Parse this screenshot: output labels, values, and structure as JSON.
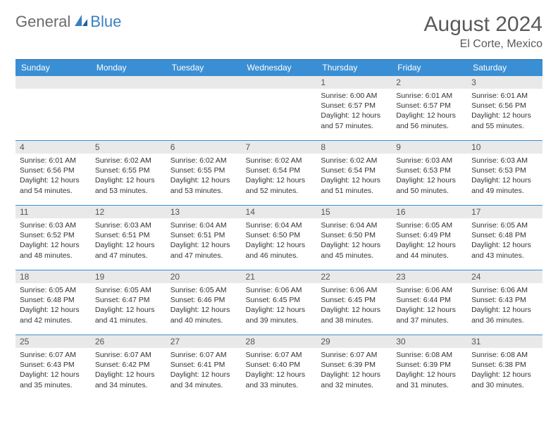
{
  "logo": {
    "text1": "General",
    "text2": "Blue"
  },
  "title": "August 2024",
  "location": "El Corte, Mexico",
  "colors": {
    "header_bg": "#3a8fd4",
    "header_text": "#ffffff",
    "row_border": "#3a8fd4",
    "daynum_bg": "#e9e9e9",
    "logo_gray": "#6b6b6b",
    "logo_blue": "#3a7fc4"
  },
  "day_headers": [
    "Sunday",
    "Monday",
    "Tuesday",
    "Wednesday",
    "Thursday",
    "Friday",
    "Saturday"
  ],
  "weeks": [
    [
      {
        "n": "",
        "lines": []
      },
      {
        "n": "",
        "lines": []
      },
      {
        "n": "",
        "lines": []
      },
      {
        "n": "",
        "lines": []
      },
      {
        "n": "1",
        "lines": [
          "Sunrise: 6:00 AM",
          "Sunset: 6:57 PM",
          "Daylight: 12 hours and 57 minutes."
        ]
      },
      {
        "n": "2",
        "lines": [
          "Sunrise: 6:01 AM",
          "Sunset: 6:57 PM",
          "Daylight: 12 hours and 56 minutes."
        ]
      },
      {
        "n": "3",
        "lines": [
          "Sunrise: 6:01 AM",
          "Sunset: 6:56 PM",
          "Daylight: 12 hours and 55 minutes."
        ]
      }
    ],
    [
      {
        "n": "4",
        "lines": [
          "Sunrise: 6:01 AM",
          "Sunset: 6:56 PM",
          "Daylight: 12 hours and 54 minutes."
        ]
      },
      {
        "n": "5",
        "lines": [
          "Sunrise: 6:02 AM",
          "Sunset: 6:55 PM",
          "Daylight: 12 hours and 53 minutes."
        ]
      },
      {
        "n": "6",
        "lines": [
          "Sunrise: 6:02 AM",
          "Sunset: 6:55 PM",
          "Daylight: 12 hours and 53 minutes."
        ]
      },
      {
        "n": "7",
        "lines": [
          "Sunrise: 6:02 AM",
          "Sunset: 6:54 PM",
          "Daylight: 12 hours and 52 minutes."
        ]
      },
      {
        "n": "8",
        "lines": [
          "Sunrise: 6:02 AM",
          "Sunset: 6:54 PM",
          "Daylight: 12 hours and 51 minutes."
        ]
      },
      {
        "n": "9",
        "lines": [
          "Sunrise: 6:03 AM",
          "Sunset: 6:53 PM",
          "Daylight: 12 hours and 50 minutes."
        ]
      },
      {
        "n": "10",
        "lines": [
          "Sunrise: 6:03 AM",
          "Sunset: 6:53 PM",
          "Daylight: 12 hours and 49 minutes."
        ]
      }
    ],
    [
      {
        "n": "11",
        "lines": [
          "Sunrise: 6:03 AM",
          "Sunset: 6:52 PM",
          "Daylight: 12 hours and 48 minutes."
        ]
      },
      {
        "n": "12",
        "lines": [
          "Sunrise: 6:03 AM",
          "Sunset: 6:51 PM",
          "Daylight: 12 hours and 47 minutes."
        ]
      },
      {
        "n": "13",
        "lines": [
          "Sunrise: 6:04 AM",
          "Sunset: 6:51 PM",
          "Daylight: 12 hours and 47 minutes."
        ]
      },
      {
        "n": "14",
        "lines": [
          "Sunrise: 6:04 AM",
          "Sunset: 6:50 PM",
          "Daylight: 12 hours and 46 minutes."
        ]
      },
      {
        "n": "15",
        "lines": [
          "Sunrise: 6:04 AM",
          "Sunset: 6:50 PM",
          "Daylight: 12 hours and 45 minutes."
        ]
      },
      {
        "n": "16",
        "lines": [
          "Sunrise: 6:05 AM",
          "Sunset: 6:49 PM",
          "Daylight: 12 hours and 44 minutes."
        ]
      },
      {
        "n": "17",
        "lines": [
          "Sunrise: 6:05 AM",
          "Sunset: 6:48 PM",
          "Daylight: 12 hours and 43 minutes."
        ]
      }
    ],
    [
      {
        "n": "18",
        "lines": [
          "Sunrise: 6:05 AM",
          "Sunset: 6:48 PM",
          "Daylight: 12 hours and 42 minutes."
        ]
      },
      {
        "n": "19",
        "lines": [
          "Sunrise: 6:05 AM",
          "Sunset: 6:47 PM",
          "Daylight: 12 hours and 41 minutes."
        ]
      },
      {
        "n": "20",
        "lines": [
          "Sunrise: 6:05 AM",
          "Sunset: 6:46 PM",
          "Daylight: 12 hours and 40 minutes."
        ]
      },
      {
        "n": "21",
        "lines": [
          "Sunrise: 6:06 AM",
          "Sunset: 6:45 PM",
          "Daylight: 12 hours and 39 minutes."
        ]
      },
      {
        "n": "22",
        "lines": [
          "Sunrise: 6:06 AM",
          "Sunset: 6:45 PM",
          "Daylight: 12 hours and 38 minutes."
        ]
      },
      {
        "n": "23",
        "lines": [
          "Sunrise: 6:06 AM",
          "Sunset: 6:44 PM",
          "Daylight: 12 hours and 37 minutes."
        ]
      },
      {
        "n": "24",
        "lines": [
          "Sunrise: 6:06 AM",
          "Sunset: 6:43 PM",
          "Daylight: 12 hours and 36 minutes."
        ]
      }
    ],
    [
      {
        "n": "25",
        "lines": [
          "Sunrise: 6:07 AM",
          "Sunset: 6:43 PM",
          "Daylight: 12 hours and 35 minutes."
        ]
      },
      {
        "n": "26",
        "lines": [
          "Sunrise: 6:07 AM",
          "Sunset: 6:42 PM",
          "Daylight: 12 hours and 34 minutes."
        ]
      },
      {
        "n": "27",
        "lines": [
          "Sunrise: 6:07 AM",
          "Sunset: 6:41 PM",
          "Daylight: 12 hours and 34 minutes."
        ]
      },
      {
        "n": "28",
        "lines": [
          "Sunrise: 6:07 AM",
          "Sunset: 6:40 PM",
          "Daylight: 12 hours and 33 minutes."
        ]
      },
      {
        "n": "29",
        "lines": [
          "Sunrise: 6:07 AM",
          "Sunset: 6:39 PM",
          "Daylight: 12 hours and 32 minutes."
        ]
      },
      {
        "n": "30",
        "lines": [
          "Sunrise: 6:08 AM",
          "Sunset: 6:39 PM",
          "Daylight: 12 hours and 31 minutes."
        ]
      },
      {
        "n": "31",
        "lines": [
          "Sunrise: 6:08 AM",
          "Sunset: 6:38 PM",
          "Daylight: 12 hours and 30 minutes."
        ]
      }
    ]
  ]
}
